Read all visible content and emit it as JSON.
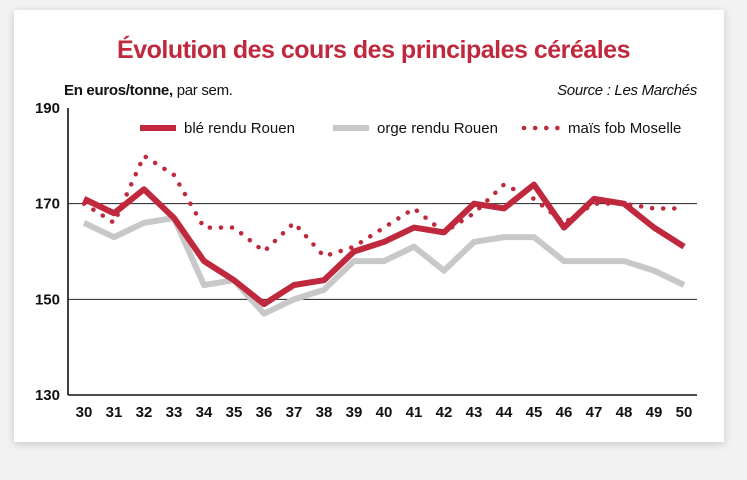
{
  "title": "Évolution des cours des principales céréales",
  "unit_bold": "En euros/tonne,",
  "unit_rest": " par sem.",
  "source": "Source : Les Marchés",
  "colors": {
    "title": "#c0283e",
    "ble": "#c0283e",
    "orge": "#c8c8c8",
    "mais": "#c0283e",
    "gridline": "#222222"
  },
  "chart_data": {
    "type": "line",
    "title": "Évolution des cours des principales céréales",
    "ylabel": "En euros/tonne, par sem.",
    "xlabel": "",
    "ylim": [
      130,
      190
    ],
    "yticks": [
      130,
      150,
      170,
      190
    ],
    "grid": "horizontal",
    "legend_position": "top",
    "x": [
      "30",
      "31",
      "32",
      "33",
      "34",
      "35",
      "36",
      "37",
      "38",
      "39",
      "40",
      "41",
      "42",
      "43",
      "44",
      "45",
      "46",
      "47",
      "48",
      "49",
      "50"
    ],
    "series": [
      {
        "name": "blé rendu Rouen",
        "style": "solid-thick",
        "color": "#c0283e",
        "values": [
          171,
          168,
          173,
          167,
          158,
          154,
          149,
          153,
          154,
          160,
          162,
          165,
          164,
          170,
          169,
          174,
          165,
          171,
          170,
          165,
          161
        ]
      },
      {
        "name": "orge rendu Rouen",
        "style": "solid",
        "color": "#c8c8c8",
        "values": [
          166,
          163,
          166,
          167,
          153,
          154,
          147,
          150,
          152,
          158,
          158,
          161,
          156,
          162,
          163,
          163,
          158,
          158,
          158,
          156,
          153
        ]
      },
      {
        "name": "maïs fob Moselle",
        "style": "dotted",
        "color": "#c0283e",
        "values": [
          170,
          166,
          180,
          176,
          165,
          165,
          160,
          166,
          159,
          161,
          165,
          169,
          164,
          168,
          174,
          171,
          166,
          170,
          170,
          169,
          169
        ]
      }
    ]
  }
}
